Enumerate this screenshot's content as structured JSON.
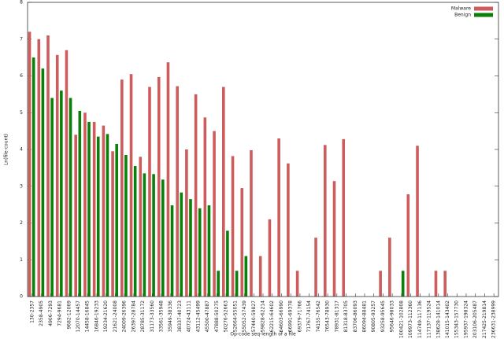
{
  "chart_data": {
    "type": "bar",
    "x_label": "Op-code seq-length of a file",
    "y_label": "Ln(file-count)",
    "categories": [
      "130-2357",
      "2358-4905",
      "4906-7293",
      "7294-9681",
      "9682-12069",
      "12070-14457",
      "14458-16845",
      "16846-19233",
      "19234-21620",
      "21621-24008",
      "24009-26396",
      "26397-28784",
      "28785-31172",
      "31173-33560",
      "33561-35948",
      "35949-38336",
      "38337-40723",
      "40724-43111",
      "43112-45499",
      "45500-47887",
      "47888-50275",
      "50276-52663",
      "52664-55051",
      "55052-57439",
      "57440-59827",
      "59828-62214",
      "62215-64602",
      "64603-66990",
      "66991-69378",
      "69379-71766",
      "71767-74154",
      "74155-76542",
      "76543-78930",
      "78931-81317",
      "81318-83705",
      "83706-86093",
      "86094-88481",
      "90805-93257",
      "93258-95645",
      "95646-98033",
      "100421-102808",
      "109973-112360",
      "114749-117136",
      "117137-119524",
      "138628-141014",
      "141015-143402",
      "155343-157730",
      "195937-198324",
      "203106-205487",
      "217425-219814",
      "236631-238999"
    ],
    "series": [
      {
        "name": "Malware",
        "color": "#cd5c5c",
        "values": [
          7.2,
          7.0,
          7.1,
          6.57,
          6.7,
          4.4,
          5.0,
          4.75,
          4.65,
          3.95,
          5.9,
          6.05,
          3.8,
          5.7,
          5.97,
          6.37,
          5.72,
          4.0,
          5.5,
          4.87,
          4.5,
          5.7,
          3.82,
          2.95,
          3.98,
          1.1,
          2.1,
          4.3,
          3.62,
          0.7,
          0,
          1.6,
          4.12,
          3.14,
          4.28,
          0,
          0,
          0,
          0.7,
          1.6,
          0,
          2.78,
          4.1,
          0,
          0.7,
          0.7,
          0,
          0,
          0,
          0,
          0
        ]
      },
      {
        "name": "Benign",
        "color": "#0a800a",
        "values": [
          6.5,
          6.2,
          5.4,
          5.6,
          5.4,
          5.05,
          4.75,
          4.35,
          4.42,
          4.15,
          3.85,
          3.55,
          3.35,
          3.33,
          3.18,
          2.48,
          2.83,
          2.65,
          2.4,
          2.48,
          0.7,
          1.79,
          0.7,
          1.1,
          0,
          0,
          0,
          0,
          0,
          0,
          0,
          0,
          0,
          0,
          0,
          0,
          0,
          0,
          0,
          0,
          0.7,
          0,
          0,
          0,
          0,
          0,
          0,
          0,
          0,
          0,
          0
        ]
      }
    ],
    "ylim": [
      0,
      8
    ],
    "yticks": [
      0,
      1,
      2,
      3,
      4,
      5,
      6,
      7,
      8
    ],
    "legend": "top-right"
  }
}
